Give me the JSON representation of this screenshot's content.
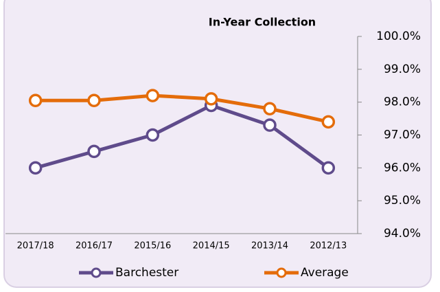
{
  "chart_data": {
    "type": "line",
    "title": "In-Year Collection",
    "categories": [
      "2017/18",
      "2016/17",
      "2015/16",
      "2014/15",
      "2013/14",
      "2012/13"
    ],
    "series": [
      {
        "name": "Barchester",
        "color": "#5f4b8b",
        "values": [
          96.0,
          96.5,
          97.0,
          97.9,
          97.3,
          96.0
        ]
      },
      {
        "name": "Average",
        "color": "#e46c0a",
        "values": [
          98.05,
          98.05,
          98.2,
          98.1,
          97.8,
          97.4
        ]
      }
    ],
    "ylim": [
      94,
      100
    ],
    "yticks": [
      {
        "value": 94,
        "label": "94.0%"
      },
      {
        "value": 95,
        "label": "95.0%"
      },
      {
        "value": 96,
        "label": "96.0%"
      },
      {
        "value": 97,
        "label": "97.0%"
      },
      {
        "value": 98,
        "label": "98.0%"
      },
      {
        "value": 99,
        "label": "99.0%"
      },
      {
        "value": 100,
        "label": "100.0%"
      }
    ],
    "y_axis_side": "right"
  }
}
